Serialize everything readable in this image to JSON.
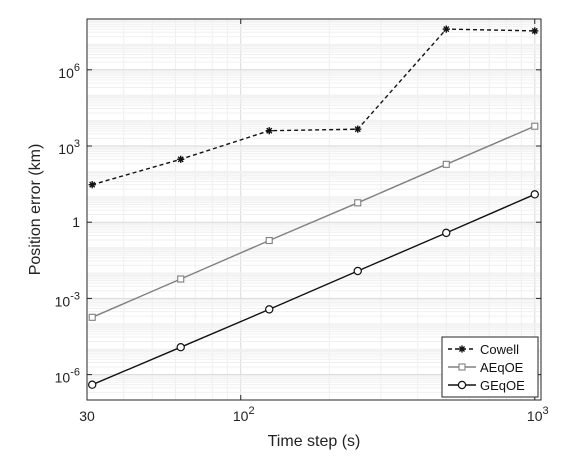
{
  "chart_data": {
    "type": "line",
    "xlabel": "Time step (s)",
    "ylabel": "Position error (km)",
    "x_scale": "log",
    "y_scale": "log",
    "xlim": [
      30,
      1050
    ],
    "ylim": [
      1e-07,
      100000000.0
    ],
    "grid": true,
    "legend_position": "bottom-right",
    "x_ticks": [
      {
        "value": 30,
        "base": "30",
        "exp": ""
      },
      {
        "value": 100,
        "base": "10",
        "exp": "2"
      },
      {
        "value": 1000,
        "base": "10",
        "exp": "3"
      }
    ],
    "y_ticks": [
      {
        "value": 1e-06,
        "base": "10",
        "exp": "-6"
      },
      {
        "value": 0.001,
        "base": "10",
        "exp": "-3"
      },
      {
        "value": 1,
        "base": "1",
        "exp": ""
      },
      {
        "value": 1000.0,
        "base": "10",
        "exp": "3"
      },
      {
        "value": 1000000.0,
        "base": "10",
        "exp": "6"
      }
    ],
    "x": [
      31.25,
      62.5,
      125,
      250,
      500,
      1000
    ],
    "series": [
      {
        "name": "Cowell",
        "color": "#111111",
        "dash": "dashed",
        "marker": "asterisk",
        "values": [
          30,
          300,
          4000,
          4600,
          40000000,
          34000000
        ]
      },
      {
        "name": "AEqOE",
        "color": "#808080",
        "dash": "solid",
        "marker": "square",
        "values": [
          0.00018,
          0.0058,
          0.19,
          5.8,
          190,
          6000
        ]
      },
      {
        "name": "GEqOE",
        "color": "#111111",
        "dash": "solid",
        "marker": "circle",
        "values": [
          4e-07,
          1.2e-05,
          0.00037,
          0.012,
          0.38,
          12.5
        ]
      }
    ]
  }
}
